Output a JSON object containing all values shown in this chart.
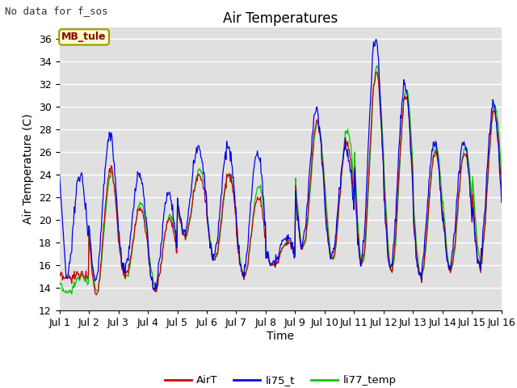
{
  "title": "Air Temperatures",
  "ylabel": "Air Temperature (C)",
  "xlabel": "Time",
  "note": "No data for f_sos",
  "legend_label": "MB_tule",
  "ylim": [
    12,
    37
  ],
  "yticks": [
    12,
    14,
    16,
    18,
    20,
    22,
    24,
    26,
    28,
    30,
    32,
    34,
    36
  ],
  "xtick_labels": [
    "Jul 1",
    "Jul 2",
    "Jul 3",
    "Jul 4",
    "Jul 5",
    "Jul 6",
    "Jul 7",
    "Jul 8",
    "Jul 9",
    "Jul 10",
    "Jul 11",
    "Jul 12",
    "Jul 13",
    "Jul 14",
    "Jul 15",
    "Jul 16"
  ],
  "bg_color": "#e0e0e0",
  "grid_color": "#ffffff",
  "line_colors": {
    "AirT": "#cc0000",
    "li75_t": "#0000ee",
    "li77_temp": "#00cc00"
  },
  "legend_entries": [
    "AirT",
    "li75_t",
    "li77_temp"
  ],
  "title_fontsize": 12,
  "label_fontsize": 10,
  "tick_fontsize": 9,
  "note_fontsize": 9
}
